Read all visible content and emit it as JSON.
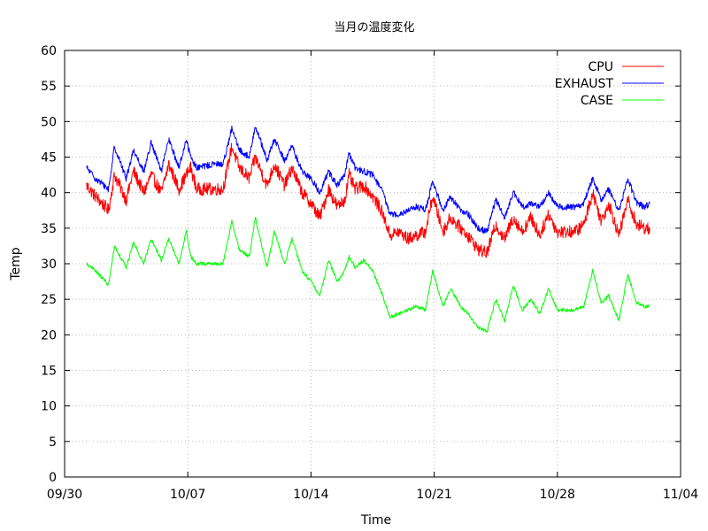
{
  "chart_data": {
    "type": "line",
    "title": "当月の温度変化",
    "xlabel": "Time",
    "ylabel": "Temp",
    "x_type": "date",
    "xlim": [
      "2023-09-30",
      "2023-11-04"
    ],
    "ylim": [
      0,
      60
    ],
    "yticks": [
      0,
      5,
      10,
      15,
      20,
      25,
      30,
      35,
      40,
      45,
      50,
      55,
      60
    ],
    "xticks": [
      "2023-09-30",
      "2023-10-07",
      "2023-10-14",
      "2023-10-21",
      "2023-10-28",
      "2023-11-04"
    ],
    "xtick_labels": [
      "09/30",
      "10/07",
      "10/14",
      "10/21",
      "10/28",
      "11/04"
    ],
    "grid": true,
    "legend_position": "top-right",
    "series": [
      {
        "name": "CPU",
        "color": "#ff0000",
        "points": [
          [
            "2023-10-01 06:00",
            41.0
          ],
          [
            "2023-10-01 18:00",
            39.5
          ],
          [
            "2023-10-02 12:00",
            37.5
          ],
          [
            "2023-10-02 20:00",
            42.5
          ],
          [
            "2023-10-03 12:00",
            39.0
          ],
          [
            "2023-10-03 22:00",
            43.0
          ],
          [
            "2023-10-04 12:00",
            40.0
          ],
          [
            "2023-10-04 22:00",
            42.5
          ],
          [
            "2023-10-05 12:00",
            40.0
          ],
          [
            "2023-10-05 22:00",
            44.0
          ],
          [
            "2023-10-06 12:00",
            40.5
          ],
          [
            "2023-10-06 22:00",
            42.5
          ],
          [
            "2023-10-07 04:00",
            43.5
          ],
          [
            "2023-10-07 12:00",
            40.5
          ],
          [
            "2023-10-08 12:00",
            40.5
          ],
          [
            "2023-10-09 00:00",
            40.5
          ],
          [
            "2023-10-09 12:00",
            46.5
          ],
          [
            "2023-10-09 22:00",
            43.5
          ],
          [
            "2023-10-10 12:00",
            42.0
          ],
          [
            "2023-10-10 20:00",
            45.0
          ],
          [
            "2023-10-11 12:00",
            41.0
          ],
          [
            "2023-10-11 22:00",
            44.0
          ],
          [
            "2023-10-12 12:00",
            41.0
          ],
          [
            "2023-10-12 22:00",
            43.5
          ],
          [
            "2023-10-13 12:00",
            40.0
          ],
          [
            "2023-10-14 00:00",
            38.5
          ],
          [
            "2023-10-14 12:00",
            36.5
          ],
          [
            "2023-10-15 00:00",
            40.5
          ],
          [
            "2023-10-15 12:00",
            38.0
          ],
          [
            "2023-10-15 22:00",
            39.0
          ],
          [
            "2023-10-16 04:00",
            42.5
          ],
          [
            "2023-10-16 12:00",
            40.5
          ],
          [
            "2023-10-17 00:00",
            41.0
          ],
          [
            "2023-10-17 12:00",
            39.5
          ],
          [
            "2023-10-18 00:00",
            37.5
          ],
          [
            "2023-10-18 12:00",
            34.0
          ],
          [
            "2023-10-19 00:00",
            34.5
          ],
          [
            "2023-10-19 12:00",
            33.5
          ],
          [
            "2023-10-20 00:00",
            34.0
          ],
          [
            "2023-10-20 12:00",
            34.5
          ],
          [
            "2023-10-20 22:00",
            39.5
          ],
          [
            "2023-10-21 12:00",
            34.5
          ],
          [
            "2023-10-21 22:00",
            36.5
          ],
          [
            "2023-10-22 12:00",
            35.0
          ],
          [
            "2023-10-22 22:00",
            34.0
          ],
          [
            "2023-10-23 12:00",
            32.0
          ],
          [
            "2023-10-24 00:00",
            31.5
          ],
          [
            "2023-10-24 12:00",
            35.5
          ],
          [
            "2023-10-25 00:00",
            33.5
          ],
          [
            "2023-10-25 12:00",
            36.5
          ],
          [
            "2023-10-26 00:00",
            34.5
          ],
          [
            "2023-10-26 12:00",
            36.5
          ],
          [
            "2023-10-27 00:00",
            34.0
          ],
          [
            "2023-10-27 12:00",
            37.0
          ],
          [
            "2023-10-28 00:00",
            34.5
          ],
          [
            "2023-10-28 12:00",
            34.5
          ],
          [
            "2023-10-29 00:00",
            34.5
          ],
          [
            "2023-10-29 12:00",
            35.5
          ],
          [
            "2023-10-30 00:00",
            40.0
          ],
          [
            "2023-10-30 12:00",
            36.0
          ],
          [
            "2023-10-30 22:00",
            38.5
          ],
          [
            "2023-10-31 12:00",
            34.0
          ],
          [
            "2023-11-01 00:00",
            39.0
          ],
          [
            "2023-11-01 12:00",
            35.5
          ],
          [
            "2023-11-02 00:00",
            35.0
          ],
          [
            "2023-11-02 06:00",
            35.0
          ]
        ]
      },
      {
        "name": "EXHAUST",
        "color": "#0000ff",
        "points": [
          [
            "2023-10-01 06:00",
            43.5
          ],
          [
            "2023-10-01 18:00",
            42.0
          ],
          [
            "2023-10-02 12:00",
            40.5
          ],
          [
            "2023-10-02 20:00",
            46.5
          ],
          [
            "2023-10-03 12:00",
            42.0
          ],
          [
            "2023-10-03 22:00",
            46.0
          ],
          [
            "2023-10-04 12:00",
            43.0
          ],
          [
            "2023-10-04 22:00",
            47.0
          ],
          [
            "2023-10-05 12:00",
            43.0
          ],
          [
            "2023-10-05 22:00",
            47.5
          ],
          [
            "2023-10-06 12:00",
            43.5
          ],
          [
            "2023-10-06 22:00",
            47.5
          ],
          [
            "2023-10-07 04:00",
            45.0
          ],
          [
            "2023-10-07 12:00",
            43.5
          ],
          [
            "2023-10-08 12:00",
            44.0
          ],
          [
            "2023-10-09 00:00",
            44.0
          ],
          [
            "2023-10-09 12:00",
            49.0
          ],
          [
            "2023-10-09 22:00",
            46.0
          ],
          [
            "2023-10-10 12:00",
            45.0
          ],
          [
            "2023-10-10 20:00",
            49.5
          ],
          [
            "2023-10-11 12:00",
            44.5
          ],
          [
            "2023-10-11 22:00",
            47.5
          ],
          [
            "2023-10-12 12:00",
            44.5
          ],
          [
            "2023-10-12 22:00",
            46.5
          ],
          [
            "2023-10-13 12:00",
            43.0
          ],
          [
            "2023-10-14 00:00",
            42.0
          ],
          [
            "2023-10-14 12:00",
            40.0
          ],
          [
            "2023-10-15 00:00",
            43.0
          ],
          [
            "2023-10-15 12:00",
            41.0
          ],
          [
            "2023-10-15 22:00",
            42.5
          ],
          [
            "2023-10-16 04:00",
            45.5
          ],
          [
            "2023-10-16 12:00",
            43.5
          ],
          [
            "2023-10-17 00:00",
            43.0
          ],
          [
            "2023-10-17 12:00",
            42.5
          ],
          [
            "2023-10-18 00:00",
            40.5
          ],
          [
            "2023-10-18 12:00",
            37.0
          ],
          [
            "2023-10-19 00:00",
            37.0
          ],
          [
            "2023-10-19 12:00",
            37.5
          ],
          [
            "2023-10-20 00:00",
            38.0
          ],
          [
            "2023-10-20 12:00",
            37.5
          ],
          [
            "2023-10-20 22:00",
            41.5
          ],
          [
            "2023-10-21 12:00",
            37.5
          ],
          [
            "2023-10-21 22:00",
            39.5
          ],
          [
            "2023-10-22 12:00",
            37.5
          ],
          [
            "2023-10-22 22:00",
            37.0
          ],
          [
            "2023-10-23 12:00",
            35.0
          ],
          [
            "2023-10-24 00:00",
            34.5
          ],
          [
            "2023-10-24 12:00",
            39.0
          ],
          [
            "2023-10-25 00:00",
            36.5
          ],
          [
            "2023-10-25 12:00",
            40.0
          ],
          [
            "2023-10-26 00:00",
            38.0
          ],
          [
            "2023-10-26 12:00",
            38.5
          ],
          [
            "2023-10-27 00:00",
            38.0
          ],
          [
            "2023-10-27 12:00",
            40.0
          ],
          [
            "2023-10-28 00:00",
            38.0
          ],
          [
            "2023-10-28 12:00",
            38.0
          ],
          [
            "2023-10-29 00:00",
            38.0
          ],
          [
            "2023-10-29 12:00",
            38.5
          ],
          [
            "2023-10-30 00:00",
            42.0
          ],
          [
            "2023-10-30 12:00",
            39.0
          ],
          [
            "2023-10-30 22:00",
            40.5
          ],
          [
            "2023-10-31 12:00",
            37.5
          ],
          [
            "2023-11-01 00:00",
            42.0
          ],
          [
            "2023-11-01 12:00",
            38.5
          ],
          [
            "2023-11-02 00:00",
            38.0
          ],
          [
            "2023-11-02 06:00",
            38.5
          ]
        ]
      },
      {
        "name": "CASE",
        "color": "#00ff00",
        "points": [
          [
            "2023-10-01 06:00",
            30.0
          ],
          [
            "2023-10-01 18:00",
            29.0
          ],
          [
            "2023-10-02 12:00",
            27.0
          ],
          [
            "2023-10-02 20:00",
            32.5
          ],
          [
            "2023-10-03 12:00",
            29.5
          ],
          [
            "2023-10-03 22:00",
            33.0
          ],
          [
            "2023-10-04 12:00",
            30.0
          ],
          [
            "2023-10-04 22:00",
            33.5
          ],
          [
            "2023-10-05 12:00",
            30.5
          ],
          [
            "2023-10-05 22:00",
            33.5
          ],
          [
            "2023-10-06 12:00",
            30.0
          ],
          [
            "2023-10-06 22:00",
            34.5
          ],
          [
            "2023-10-07 04:00",
            31.0
          ],
          [
            "2023-10-07 12:00",
            30.0
          ],
          [
            "2023-10-08 12:00",
            30.0
          ],
          [
            "2023-10-09 00:00",
            30.0
          ],
          [
            "2023-10-09 12:00",
            36.0
          ],
          [
            "2023-10-09 22:00",
            32.0
          ],
          [
            "2023-10-10 12:00",
            31.0
          ],
          [
            "2023-10-10 20:00",
            36.5
          ],
          [
            "2023-10-11 12:00",
            29.5
          ],
          [
            "2023-10-11 22:00",
            34.5
          ],
          [
            "2023-10-12 12:00",
            30.0
          ],
          [
            "2023-10-12 22:00",
            33.5
          ],
          [
            "2023-10-13 12:00",
            29.0
          ],
          [
            "2023-10-14 00:00",
            27.5
          ],
          [
            "2023-10-14 12:00",
            25.5
          ],
          [
            "2023-10-15 00:00",
            30.5
          ],
          [
            "2023-10-15 12:00",
            27.5
          ],
          [
            "2023-10-15 22:00",
            29.0
          ],
          [
            "2023-10-16 04:00",
            31.0
          ],
          [
            "2023-10-16 12:00",
            29.5
          ],
          [
            "2023-10-17 00:00",
            30.5
          ],
          [
            "2023-10-17 12:00",
            29.0
          ],
          [
            "2023-10-18 00:00",
            26.0
          ],
          [
            "2023-10-18 12:00",
            22.5
          ],
          [
            "2023-10-19 00:00",
            23.0
          ],
          [
            "2023-10-19 12:00",
            23.5
          ],
          [
            "2023-10-20 00:00",
            24.0
          ],
          [
            "2023-10-20 12:00",
            23.5
          ],
          [
            "2023-10-20 22:00",
            29.0
          ],
          [
            "2023-10-21 12:00",
            24.0
          ],
          [
            "2023-10-21 22:00",
            26.5
          ],
          [
            "2023-10-22 12:00",
            24.0
          ],
          [
            "2023-10-22 22:00",
            23.0
          ],
          [
            "2023-10-23 12:00",
            21.0
          ],
          [
            "2023-10-24 00:00",
            20.5
          ],
          [
            "2023-10-24 12:00",
            25.0
          ],
          [
            "2023-10-25 00:00",
            22.0
          ],
          [
            "2023-10-25 12:00",
            27.0
          ],
          [
            "2023-10-26 00:00",
            23.5
          ],
          [
            "2023-10-26 12:00",
            25.0
          ],
          [
            "2023-10-27 00:00",
            23.0
          ],
          [
            "2023-10-27 12:00",
            26.5
          ],
          [
            "2023-10-28 00:00",
            23.5
          ],
          [
            "2023-10-28 12:00",
            23.5
          ],
          [
            "2023-10-29 00:00",
            23.5
          ],
          [
            "2023-10-29 12:00",
            24.0
          ],
          [
            "2023-10-30 00:00",
            29.0
          ],
          [
            "2023-10-30 12:00",
            24.5
          ],
          [
            "2023-10-30 22:00",
            25.5
          ],
          [
            "2023-10-31 12:00",
            22.0
          ],
          [
            "2023-11-01 00:00",
            28.5
          ],
          [
            "2023-11-01 12:00",
            24.5
          ],
          [
            "2023-11-02 00:00",
            24.0
          ],
          [
            "2023-11-02 06:00",
            24.0
          ]
        ]
      }
    ]
  }
}
